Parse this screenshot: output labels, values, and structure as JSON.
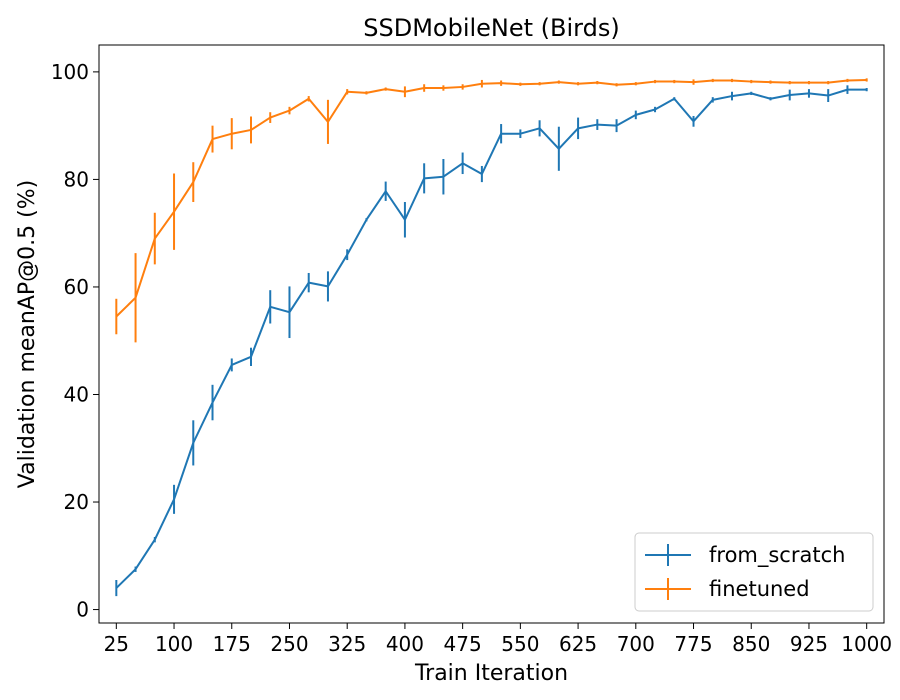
{
  "chart_data": {
    "type": "line",
    "title": "SSDMobileNet (Birds)",
    "xlabel": "Train Iteration",
    "ylabel": "Validation meanAP@0.5 (%)",
    "xlim": [
      2.5,
      1022.5
    ],
    "ylim": [
      -2.5,
      105
    ],
    "xticks": [
      25,
      100,
      175,
      250,
      325,
      400,
      475,
      550,
      625,
      700,
      775,
      850,
      925,
      1000
    ],
    "yticks": [
      0,
      20,
      40,
      60,
      80,
      100
    ],
    "grid": false,
    "legend_position": "lower-right",
    "error_bars": true,
    "x": [
      25,
      50,
      75,
      100,
      125,
      150,
      175,
      200,
      225,
      250,
      275,
      300,
      325,
      350,
      375,
      400,
      425,
      450,
      475,
      500,
      525,
      550,
      575,
      600,
      625,
      650,
      675,
      700,
      725,
      750,
      775,
      800,
      825,
      850,
      875,
      900,
      925,
      950,
      975,
      1000
    ],
    "series": [
      {
        "name": "from_scratch",
        "color": "#1f77b4",
        "values": [
          4,
          7.5,
          13,
          20.5,
          31,
          38.5,
          45.5,
          47,
          56.3,
          55.3,
          60.8,
          60.1,
          66,
          72.5,
          77.8,
          72.5,
          80.2,
          80.5,
          83,
          81,
          88.5,
          88.5,
          89.5,
          85.7,
          89.5,
          90.2,
          90,
          92,
          93,
          95,
          90.8,
          94.8,
          95.5,
          96,
          95,
          95.7,
          96,
          95.6,
          96.7,
          96.7
        ],
        "errors": [
          1.5,
          0.5,
          0.5,
          2.7,
          4.2,
          3.3,
          1.2,
          1.7,
          3.1,
          4.8,
          1.8,
          2.8,
          1.0,
          0.3,
          1.8,
          3.3,
          2.8,
          3.3,
          2.0,
          1.5,
          1.8,
          0.8,
          1.5,
          4.1,
          2.0,
          1.0,
          1.2,
          0.8,
          0.5,
          0.3,
          1.0,
          0.5,
          0.8,
          0.3,
          0.3,
          1.0,
          0.8,
          1.2,
          0.8,
          0.3
        ]
      },
      {
        "name": "finetuned",
        "color": "#ff7f0e",
        "values": [
          54.5,
          58,
          69,
          74,
          79.5,
          87.5,
          88.5,
          89.2,
          91.5,
          92.8,
          95,
          90.7,
          96.3,
          96.1,
          96.8,
          96.3,
          97,
          97,
          97.2,
          97.8,
          97.9,
          97.7,
          97.8,
          98.1,
          97.8,
          98,
          97.6,
          97.8,
          98.2,
          98.2,
          98.1,
          98.4,
          98.4,
          98.2,
          98.1,
          98,
          98,
          98,
          98.4,
          98.5
        ],
        "errors": [
          3.3,
          8.3,
          4.8,
          7.1,
          3.7,
          2.5,
          2.9,
          2.5,
          1.0,
          0.7,
          0.5,
          4.1,
          0.5,
          0.3,
          0.3,
          1.0,
          0.7,
          0.5,
          0.5,
          0.7,
          0.5,
          0.3,
          0.3,
          0.3,
          0.3,
          0.3,
          0.3,
          0.3,
          0.3,
          0.3,
          0.5,
          0.3,
          0.3,
          0.3,
          0.3,
          0.3,
          0.3,
          0.3,
          0.3,
          0.3
        ]
      }
    ]
  }
}
